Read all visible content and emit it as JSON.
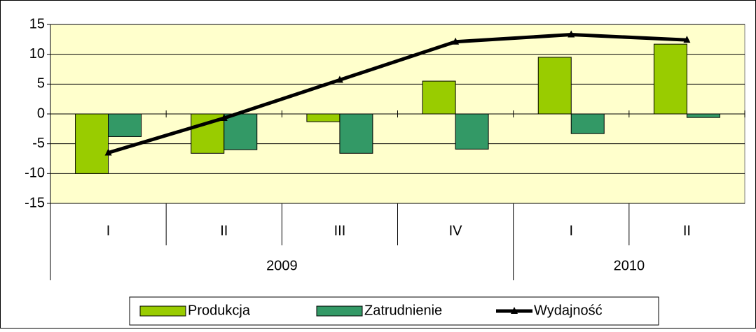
{
  "chart_data": {
    "type": "bar-line",
    "groups": [
      {
        "label": "2009",
        "categories": [
          "I",
          "II",
          "III",
          "IV"
        ]
      },
      {
        "label": "2010",
        "categories": [
          "I",
          "II"
        ]
      }
    ],
    "series": [
      {
        "name": "Produkcja",
        "type": "bar",
        "color": "#99cc00",
        "values": [
          -10,
          -6.6,
          -1.3,
          5.5,
          9.5,
          11.7
        ]
      },
      {
        "name": "Zatrudnienie",
        "type": "bar",
        "color": "#339966",
        "values": [
          -3.8,
          -6,
          -6.6,
          -5.9,
          -3.3,
          -0.6
        ]
      },
      {
        "name": "Wydajność",
        "type": "line",
        "color": "#000000",
        "values": [
          -6.5,
          -0.7,
          5.7,
          12.1,
          13.3,
          12.4
        ]
      }
    ],
    "ylim": [
      -15,
      15
    ],
    "yticks": [
      -15,
      -10,
      -5,
      0,
      5,
      10,
      15
    ],
    "grid": true,
    "legend": "bottom"
  }
}
